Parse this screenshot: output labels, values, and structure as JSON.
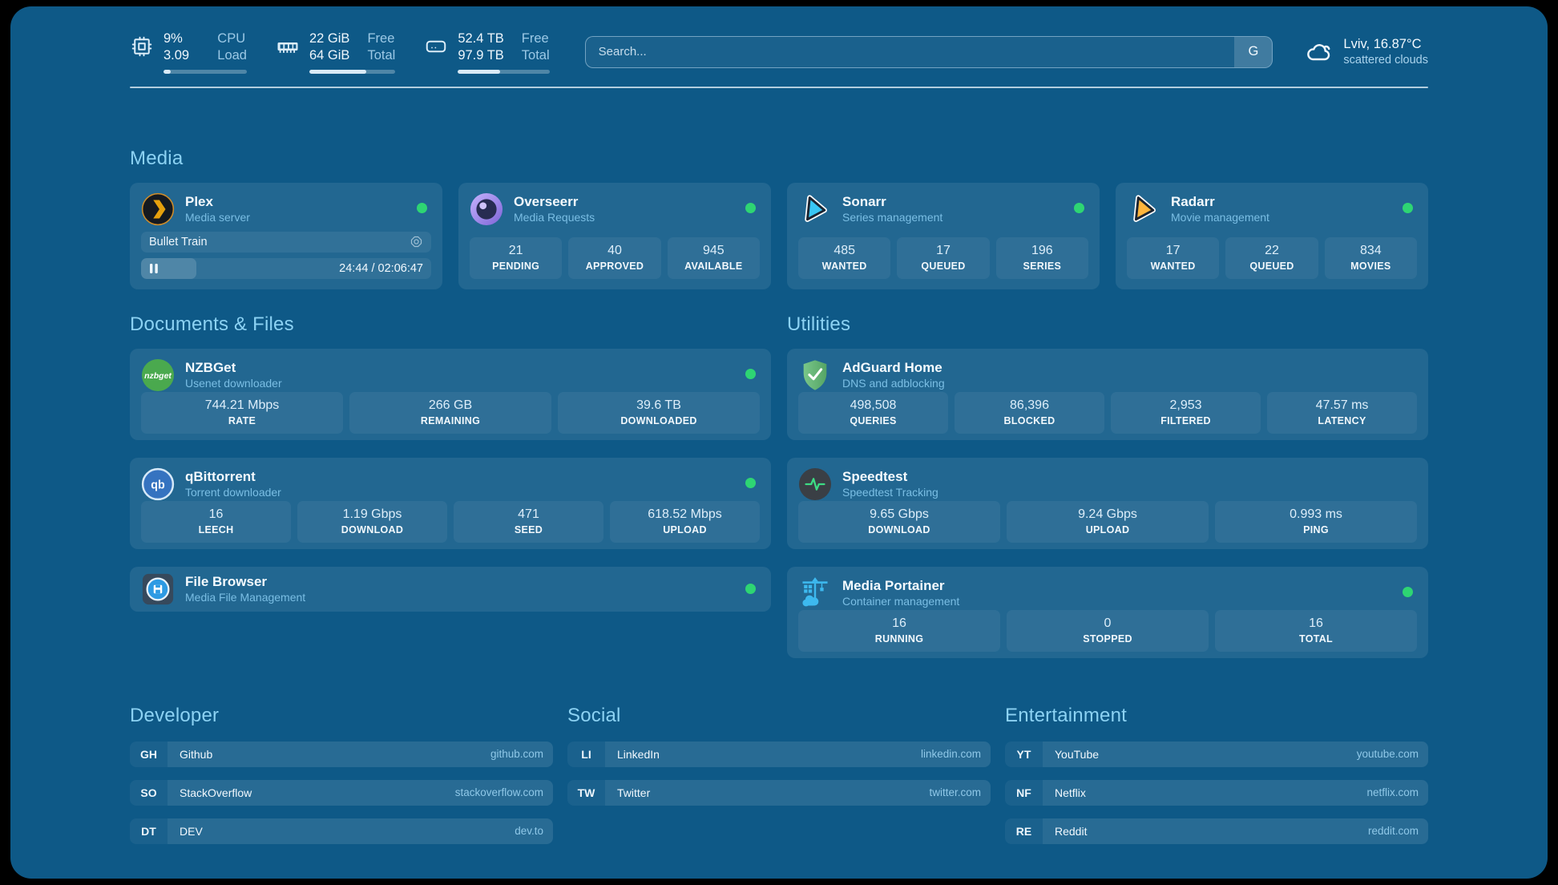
{
  "header": {
    "stats": [
      {
        "name": "cpu",
        "values": [
          "9%",
          "3.09"
        ],
        "labels": [
          "CPU",
          "Load"
        ],
        "progress_pct": 9
      },
      {
        "name": "memory",
        "values": [
          "22 GiB",
          "64 GiB"
        ],
        "labels": [
          "Free",
          "Total"
        ],
        "progress_pct": 66
      },
      {
        "name": "storage",
        "values": [
          "52.4 TB",
          "97.9 TB"
        ],
        "labels": [
          "Free",
          "Total"
        ],
        "progress_pct": 46
      }
    ],
    "search": {
      "placeholder": "Search...",
      "engine_label": "G"
    },
    "weather": {
      "location": "Lviv, 16.87°C",
      "condition": "scattered clouds"
    }
  },
  "sections": {
    "media": {
      "title": "Media",
      "cards": [
        {
          "title": "Plex",
          "subtitle": "Media server",
          "now_playing": {
            "title": "Bullet Train",
            "time": "24:44 / 02:06:47",
            "progress_pct": 19
          }
        },
        {
          "title": "Overseerr",
          "subtitle": "Media Requests",
          "stats": [
            {
              "value": "21",
              "label": "PENDING"
            },
            {
              "value": "40",
              "label": "APPROVED"
            },
            {
              "value": "945",
              "label": "AVAILABLE"
            }
          ]
        },
        {
          "title": "Sonarr",
          "subtitle": "Series management",
          "stats": [
            {
              "value": "485",
              "label": "WANTED"
            },
            {
              "value": "17",
              "label": "QUEUED"
            },
            {
              "value": "196",
              "label": "SERIES"
            }
          ]
        },
        {
          "title": "Radarr",
          "subtitle": "Movie management",
          "stats": [
            {
              "value": "17",
              "label": "WANTED"
            },
            {
              "value": "22",
              "label": "QUEUED"
            },
            {
              "value": "834",
              "label": "MOVIES"
            }
          ]
        }
      ]
    },
    "documents": {
      "title": "Documents & Files",
      "cards": [
        {
          "title": "NZBGet",
          "subtitle": "Usenet downloader",
          "stats": [
            {
              "value": "744.21 Mbps",
              "label": "RATE"
            },
            {
              "value": "266 GB",
              "label": "REMAINING"
            },
            {
              "value": "39.6 TB",
              "label": "DOWNLOADED"
            }
          ]
        },
        {
          "title": "qBittorrent",
          "subtitle": "Torrent downloader",
          "stats": [
            {
              "value": "16",
              "label": "LEECH"
            },
            {
              "value": "1.19 Gbps",
              "label": "DOWNLOAD"
            },
            {
              "value": "471",
              "label": "SEED"
            },
            {
              "value": "618.52 Mbps",
              "label": "UPLOAD"
            }
          ]
        },
        {
          "title": "File Browser",
          "subtitle": "Media File Management"
        }
      ]
    },
    "utilities": {
      "title": "Utilities",
      "cards": [
        {
          "title": "AdGuard Home",
          "subtitle": "DNS and adblocking",
          "stats": [
            {
              "value": "498,508",
              "label": "QUERIES"
            },
            {
              "value": "86,396",
              "label": "BLOCKED"
            },
            {
              "value": "2,953",
              "label": "FILTERED"
            },
            {
              "value": "47.57 ms",
              "label": "LATENCY"
            }
          ]
        },
        {
          "title": "Speedtest",
          "subtitle": "Speedtest Tracking",
          "stats": [
            {
              "value": "9.65 Gbps",
              "label": "DOWNLOAD"
            },
            {
              "value": "9.24 Gbps",
              "label": "UPLOAD"
            },
            {
              "value": "0.993 ms",
              "label": "PING"
            }
          ]
        },
        {
          "title": "Media Portainer",
          "subtitle": "Container management",
          "stats": [
            {
              "value": "16",
              "label": "RUNNING"
            },
            {
              "value": "0",
              "label": "STOPPED"
            },
            {
              "value": "16",
              "label": "TOTAL"
            }
          ]
        }
      ]
    },
    "link_sections": [
      {
        "title": "Developer",
        "links": [
          {
            "abbr": "GH",
            "name": "Github",
            "url": "github.com"
          },
          {
            "abbr": "SO",
            "name": "StackOverflow",
            "url": "stackoverflow.com"
          },
          {
            "abbr": "DT",
            "name": "DEV",
            "url": "dev.to"
          }
        ]
      },
      {
        "title": "Social",
        "links": [
          {
            "abbr": "LI",
            "name": "LinkedIn",
            "url": "linkedin.com"
          },
          {
            "abbr": "TW",
            "name": "Twitter",
            "url": "twitter.com"
          }
        ]
      },
      {
        "title": "Entertainment",
        "links": [
          {
            "abbr": "YT",
            "name": "YouTube",
            "url": "youtube.com"
          },
          {
            "abbr": "NF",
            "name": "Netflix",
            "url": "netflix.com"
          },
          {
            "abbr": "RE",
            "name": "Reddit",
            "url": "reddit.com"
          }
        ]
      }
    ]
  },
  "colors": {
    "background": "#0e5987",
    "status_online": "#2ed573",
    "section_title": "#8cd2f3",
    "plex_orange": "#e5a00d",
    "sonarr_blue": "#38c6f4",
    "radarr_orange": "#ffb53c",
    "adguard_green": "#5fae6f",
    "portainer_blue": "#3db9ef"
  }
}
